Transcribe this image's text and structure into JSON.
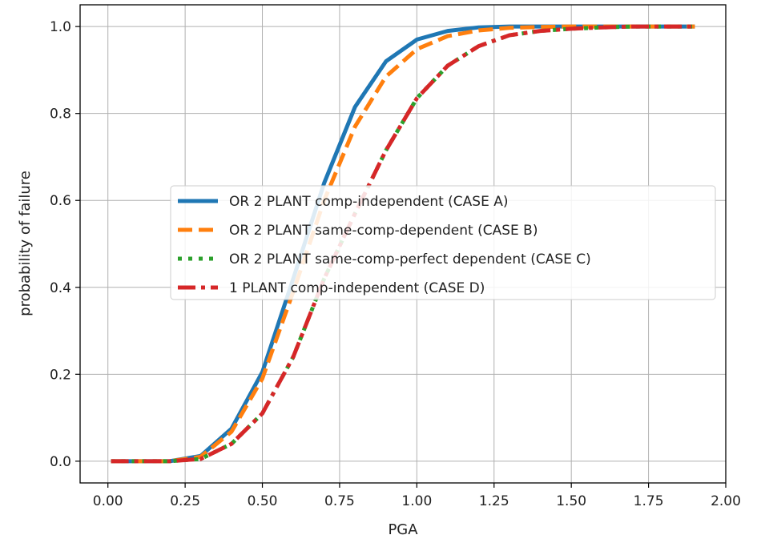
{
  "chart_data": {
    "type": "line",
    "title": "",
    "xlabel": "PGA",
    "ylabel": "probability of failure",
    "xlim": [
      -0.09,
      2.0
    ],
    "ylim": [
      -0.05,
      1.05
    ],
    "grid": true,
    "legend_position": "center-right",
    "x_ticks": [
      0.0,
      0.25,
      0.5,
      0.75,
      1.0,
      1.25,
      1.5,
      1.75,
      2.0
    ],
    "x_tick_labels": [
      "0.00",
      "0.25",
      "0.50",
      "0.75",
      "1.00",
      "1.25",
      "1.50",
      "1.75",
      "2.00"
    ],
    "y_ticks": [
      0.0,
      0.2,
      0.4,
      0.6,
      0.8,
      1.0
    ],
    "y_tick_labels": [
      "0.0",
      "0.2",
      "0.4",
      "0.6",
      "0.8",
      "1.0"
    ],
    "x": [
      0.01,
      0.1,
      0.2,
      0.3,
      0.4,
      0.5,
      0.6,
      0.7,
      0.8,
      0.9,
      1.0,
      1.1,
      1.2,
      1.3,
      1.4,
      1.5,
      1.6,
      1.7,
      1.8,
      1.9
    ],
    "series": [
      {
        "name": "OR 2 PLANT comp-independent (CASE A)",
        "color": "#1f77b4",
        "style": "solid",
        "values": [
          0.0,
          0.0,
          0.0,
          0.012,
          0.075,
          0.205,
          0.42,
          0.64,
          0.815,
          0.92,
          0.97,
          0.99,
          0.998,
          1.0,
          1.0,
          1.0,
          1.0,
          1.0,
          1.0,
          1.0
        ]
      },
      {
        "name": "OR 2 PLANT same-comp-dependent (CASE B)",
        "color": "#ff7f0e",
        "style": "dashed",
        "values": [
          0.0,
          0.0,
          0.0,
          0.01,
          0.068,
          0.19,
          0.39,
          0.6,
          0.77,
          0.885,
          0.948,
          0.978,
          0.991,
          0.997,
          0.999,
          1.0,
          1.0,
          1.0,
          1.0,
          1.0
        ]
      },
      {
        "name": "OR 2 PLANT same-comp-perfect dependent (CASE C)",
        "color": "#2ca02c",
        "style": "dotted",
        "values": [
          0.0,
          0.0,
          0.0,
          0.005,
          0.04,
          0.11,
          0.24,
          0.42,
          0.57,
          0.715,
          0.835,
          0.91,
          0.955,
          0.98,
          0.99,
          0.995,
          0.998,
          1.0,
          1.0,
          1.0
        ]
      },
      {
        "name": "1 PLANT comp-independent (CASE D)",
        "color": "#d62728",
        "style": "dashdot",
        "values": [
          0.0,
          0.0,
          0.0,
          0.005,
          0.04,
          0.11,
          0.24,
          0.42,
          0.57,
          0.715,
          0.835,
          0.91,
          0.955,
          0.98,
          0.99,
          0.995,
          0.998,
          1.0,
          1.0,
          1.0
        ]
      }
    ]
  }
}
